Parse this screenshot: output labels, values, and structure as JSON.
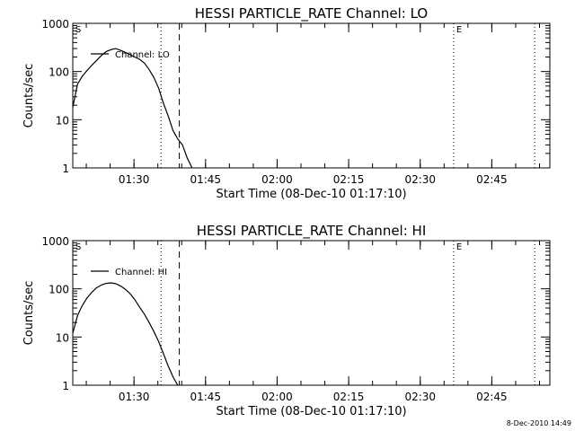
{
  "footer": {
    "timestamp": "8-Dec-2010 14:49"
  },
  "chart_data": [
    {
      "type": "line",
      "title": "HESSI PARTICLE_RATE Channel: LO",
      "xlabel": "Start Time (08-Dec-10 01:17:10)",
      "ylabel": "Counts/sec",
      "yscale": "log",
      "ylim": [
        1,
        1000
      ],
      "xlim": [
        "01:17:10",
        "02:57:10"
      ],
      "x_ticks": [
        "01:30",
        "01:45",
        "02:00",
        "02:15",
        "02:30",
        "02:45"
      ],
      "y_ticks": [
        "1",
        "10",
        "100",
        "1000"
      ],
      "legend_position": "top-left",
      "grid": false,
      "series": [
        {
          "name": "Channel: LO",
          "x": [
            "01:17:10",
            "01:18:10",
            "01:19:10",
            "01:20:10",
            "01:21:10",
            "01:22:10",
            "01:23:10",
            "01:24:10",
            "01:25:10",
            "01:26:10",
            "01:27:10",
            "01:28:10",
            "01:29:10",
            "01:30:10",
            "01:31:10",
            "01:32:10",
            "01:33:10",
            "01:34:10",
            "01:35:10",
            "01:36:10",
            "01:37:10",
            "01:38:10",
            "01:39:10",
            "01:40:10",
            "01:41:10",
            "01:42:10"
          ],
          "y": [
            18,
            55,
            80,
            105,
            135,
            170,
            215,
            260,
            285,
            300,
            275,
            250,
            225,
            200,
            180,
            150,
            110,
            75,
            45,
            22,
            12,
            6,
            4,
            3,
            1.6,
            1
          ]
        }
      ],
      "markers": [
        {
          "label": "S",
          "time": "01:17:10",
          "style": "none"
        },
        {
          "label": "",
          "time": "01:35:40",
          "style": "dotted"
        },
        {
          "label": "",
          "time": "01:39:30",
          "style": "dashed"
        },
        {
          "label": "E",
          "time": "02:37:00",
          "style": "dotted"
        },
        {
          "label": "",
          "time": "02:54:00",
          "style": "dotted"
        }
      ]
    },
    {
      "type": "line",
      "title": "HESSI PARTICLE_RATE Channel: HI",
      "xlabel": "Start Time (08-Dec-10 01:17:10)",
      "ylabel": "Counts/sec",
      "yscale": "log",
      "ylim": [
        1,
        1000
      ],
      "xlim": [
        "01:17:10",
        "02:57:10"
      ],
      "x_ticks": [
        "01:30",
        "01:45",
        "02:00",
        "02:15",
        "02:30",
        "02:45"
      ],
      "y_ticks": [
        "1",
        "10",
        "100",
        "1000"
      ],
      "legend_position": "top-left",
      "grid": false,
      "series": [
        {
          "name": "Channel: HI",
          "x": [
            "01:17:10",
            "01:18:10",
            "01:19:10",
            "01:20:10",
            "01:21:10",
            "01:22:10",
            "01:23:10",
            "01:24:10",
            "01:25:10",
            "01:26:10",
            "01:27:10",
            "01:28:10",
            "01:29:10",
            "01:30:10",
            "01:31:10",
            "01:32:10",
            "01:33:10",
            "01:34:10",
            "01:35:10",
            "01:36:10",
            "01:37:10",
            "01:38:10",
            "01:39:10"
          ],
          "y": [
            12,
            28,
            45,
            65,
            85,
            105,
            120,
            130,
            133,
            128,
            115,
            98,
            80,
            60,
            42,
            30,
            20,
            13,
            8,
            4.5,
            2.5,
            1.5,
            1
          ]
        }
      ],
      "markers": [
        {
          "label": "S",
          "time": "01:17:10",
          "style": "none"
        },
        {
          "label": "",
          "time": "01:35:40",
          "style": "dotted"
        },
        {
          "label": "",
          "time": "01:39:30",
          "style": "dashed"
        },
        {
          "label": "E",
          "time": "02:37:00",
          "style": "dotted"
        },
        {
          "label": "",
          "time": "02:54:00",
          "style": "dotted"
        }
      ]
    }
  ]
}
